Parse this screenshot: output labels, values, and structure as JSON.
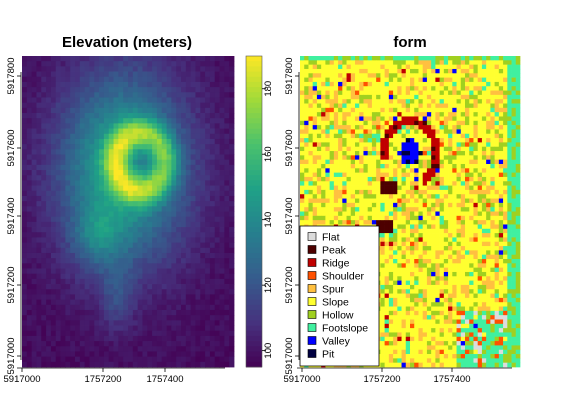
{
  "chart_data": [
    {
      "type": "heatmap",
      "title": "Elevation (meters)",
      "x_ticks": [
        "5917000",
        "1757200",
        "1757400"
      ],
      "y_ticks": [
        "5917000",
        "5917200",
        "5917400",
        "5917600",
        "5917800"
      ],
      "colorbar": {
        "ticks": [
          100,
          120,
          140,
          160,
          180
        ],
        "range": [
          95,
          190
        ],
        "palette": [
          "#440154",
          "#46327e",
          "#365c8d",
          "#277f8e",
          "#1fa187",
          "#4ac16d",
          "#a0da39",
          "#fde725"
        ]
      },
      "features": {
        "summit": "ring-shaped crater near upper center",
        "crater_center_value": 165,
        "ring_value": 184,
        "edge_value": 98
      }
    },
    {
      "type": "heatmap",
      "title": "form",
      "x_ticks": [
        "5917000",
        "1757200",
        "1757400"
      ],
      "y_ticks": [
        "5917000",
        "5917200",
        "5917400",
        "5917600",
        "5917800"
      ],
      "legend": {
        "placement": "bottom-left",
        "entries": [
          {
            "label": "Flat",
            "color": "#dcdcdc"
          },
          {
            "label": "Peak",
            "color": "#4d0000"
          },
          {
            "label": "Ridge",
            "color": "#c00000"
          },
          {
            "label": "Shoulder",
            "color": "#ff5000"
          },
          {
            "label": "Spur",
            "color": "#ffc040"
          },
          {
            "label": "Slope",
            "color": "#ffff30"
          },
          {
            "label": "Hollow",
            "color": "#a0d020"
          },
          {
            "label": "Footslope",
            "color": "#40f0a0"
          },
          {
            "label": "Valley",
            "color": "#0000ff"
          },
          {
            "label": "Pit",
            "color": "#000040"
          }
        ]
      }
    }
  ]
}
